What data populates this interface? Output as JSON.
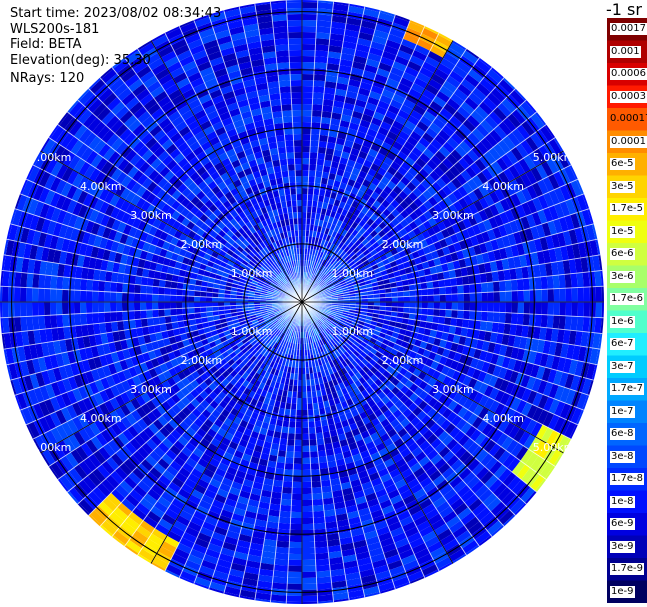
{
  "info": {
    "start_time": "Start time: 2023/08/02 08:34:43",
    "instrument": "WLS200s-181",
    "field": "Field: BETA",
    "elevation": "Elevation(deg): 35.30",
    "nrays": "NRays: 120"
  },
  "colorbar": {
    "unit": "-1 sr",
    "levels": [
      "0.0017",
      "0.001",
      "0.0006",
      "0.0003",
      "0.00017",
      "0.0001",
      "6e-5",
      "3e-5",
      "1.7e-5",
      "1e-5",
      "6e-6",
      "3e-6",
      "1.7e-6",
      "1e-6",
      "6e-7",
      "3e-7",
      "1.7e-7",
      "1e-7",
      "6e-8",
      "3e-8",
      "1.7e-8",
      "1e-8",
      "6e-9",
      "3e-9",
      "1.7e-9",
      "1e-9"
    ],
    "colors": [
      "#7f0000",
      "#b00000",
      "#d80000",
      "#ff1a00",
      "#ff5a00",
      "#ff8c00",
      "#ffb000",
      "#ffd400",
      "#ffee00",
      "#f0ff10",
      "#d0ff40",
      "#a8ff6a",
      "#80ffa0",
      "#50ffcc",
      "#20eeff",
      "#00ccff",
      "#00a8ff",
      "#0084ff",
      "#0066ff",
      "#0048ff",
      "#002cff",
      "#0010ff",
      "#0000e0",
      "#0000b8",
      "#000090",
      "#000060"
    ]
  },
  "chart_data": {
    "type": "heatmap",
    "projection": "polar-ppi",
    "field": "BETA",
    "elevation_deg": 35.3,
    "n_rays": 120,
    "range_rings_km": [
      1,
      2,
      3,
      4,
      5
    ],
    "ring_labels": [
      "1.00km",
      "2.00km",
      "3.00km",
      "4.00km",
      "5.00km"
    ],
    "spoke_interval_deg": 30,
    "max_range_km": 5.2,
    "background_level": "1e-8",
    "near_range_level": "1.7e-7",
    "high_return_sectors": [
      {
        "azimuth_deg": [
          22,
          30
        ],
        "range_km": [
          4.9,
          5.2
        ],
        "level": "6e-5"
      },
      {
        "azimuth_deg": [
          118,
          130
        ],
        "range_km": [
          4.6,
          5.2
        ],
        "level": "1e-5"
      },
      {
        "azimuth_deg": [
          208,
          226
        ],
        "range_km": [
          4.6,
          5.2
        ],
        "level": "3e-5"
      }
    ]
  }
}
